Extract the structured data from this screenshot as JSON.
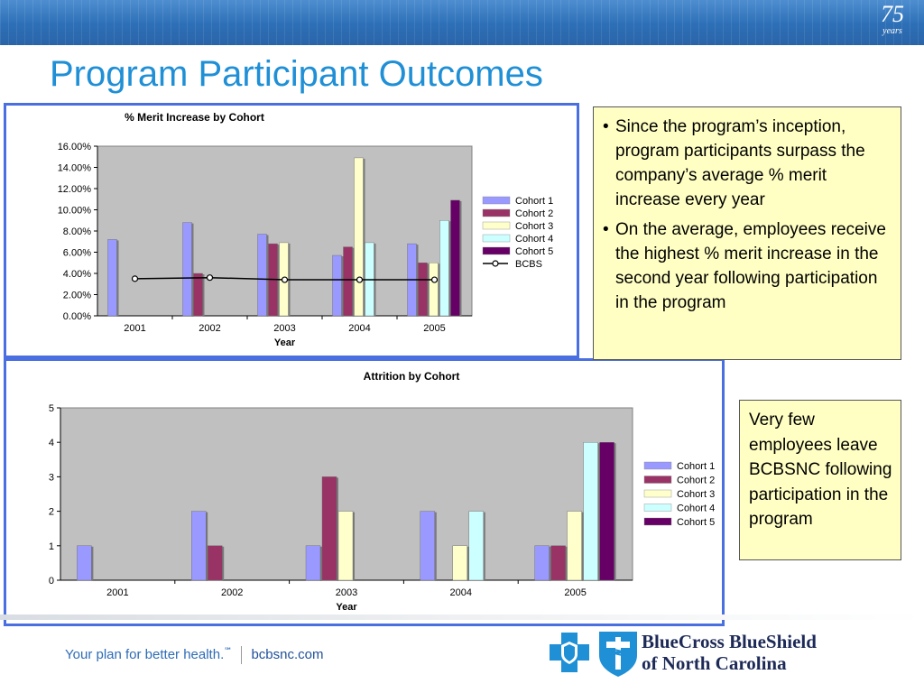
{
  "slide": {
    "title": "Program Participant Outcomes",
    "badge_number": "75",
    "badge_text": "years"
  },
  "colors": {
    "title": "#1f8fd6",
    "cohort1": "#9999ff",
    "cohort2": "#993366",
    "cohort3": "#ffffcc",
    "cohort4": "#ccffff",
    "cohort5": "#660066",
    "bcbs": "#000000",
    "frame": "#4a6fe0",
    "callout_bg": "#ffffc4"
  },
  "chart_data": [
    {
      "type": "bar",
      "title": "% Merit Increase by Cohort",
      "xlabel": "Year",
      "ylabel": "",
      "categories": [
        "2001",
        "2002",
        "2003",
        "2004",
        "2005"
      ],
      "ylim": [
        0,
        0.16
      ],
      "yticks": [
        0,
        0.02,
        0.04,
        0.06,
        0.08,
        0.1,
        0.12,
        0.14,
        0.16
      ],
      "ytick_labels": [
        "0.00%",
        "2.00%",
        "4.00%",
        "6.00%",
        "8.00%",
        "10.00%",
        "12.00%",
        "14.00%",
        "16.00%"
      ],
      "series": [
        {
          "name": "Cohort 1",
          "color": "#9999ff",
          "values": [
            0.072,
            0.088,
            0.077,
            0.057,
            0.068
          ]
        },
        {
          "name": "Cohort 2",
          "color": "#993366",
          "values": [
            null,
            0.04,
            0.068,
            0.065,
            0.05
          ]
        },
        {
          "name": "Cohort 3",
          "color": "#ffffcc",
          "values": [
            null,
            null,
            0.069,
            0.149,
            0.05
          ]
        },
        {
          "name": "Cohort 4",
          "color": "#ccffff",
          "values": [
            null,
            null,
            null,
            0.069,
            0.09
          ]
        },
        {
          "name": "Cohort 5",
          "color": "#660066",
          "values": [
            null,
            null,
            null,
            null,
            0.109
          ]
        },
        {
          "name": "BCBS",
          "type": "line",
          "color": "#000000",
          "values": [
            0.035,
            0.036,
            0.034,
            0.034,
            0.034
          ]
        }
      ],
      "legend": "right",
      "grid": false
    },
    {
      "type": "bar",
      "title": "Attrition by Cohort",
      "xlabel": "Year",
      "ylabel": "",
      "categories": [
        "2001",
        "2002",
        "2003",
        "2004",
        "2005"
      ],
      "ylim": [
        0,
        5
      ],
      "yticks": [
        0,
        1,
        2,
        3,
        4,
        5
      ],
      "ytick_labels": [
        "0",
        "1",
        "2",
        "3",
        "4",
        "5"
      ],
      "series": [
        {
          "name": "Cohort 1",
          "color": "#9999ff",
          "values": [
            1,
            2,
            1,
            2,
            1
          ]
        },
        {
          "name": "Cohort 2",
          "color": "#993366",
          "values": [
            null,
            1,
            3,
            null,
            1
          ]
        },
        {
          "name": "Cohort 3",
          "color": "#ffffcc",
          "values": [
            null,
            null,
            2,
            1,
            2
          ]
        },
        {
          "name": "Cohort 4",
          "color": "#ccffff",
          "values": [
            null,
            null,
            null,
            2,
            4
          ]
        },
        {
          "name": "Cohort 5",
          "color": "#660066",
          "values": [
            null,
            null,
            null,
            null,
            4
          ]
        }
      ],
      "legend": "right",
      "grid": false
    }
  ],
  "callouts": {
    "merit_bullets": [
      "Since the program’s inception, program participants surpass the company’s average % merit increase every year",
      "On the average, employees receive the highest % merit increase in the second year following participation in the program"
    ],
    "attrition_text": "Very few employees leave BCBSNC following participation in the program"
  },
  "footer": {
    "tagline": "Your plan for better health.",
    "tm": "℠",
    "url": "bcbsnc.com",
    "brand_line1": "BlueCross BlueShield",
    "brand_line2": "of North Carolina"
  }
}
